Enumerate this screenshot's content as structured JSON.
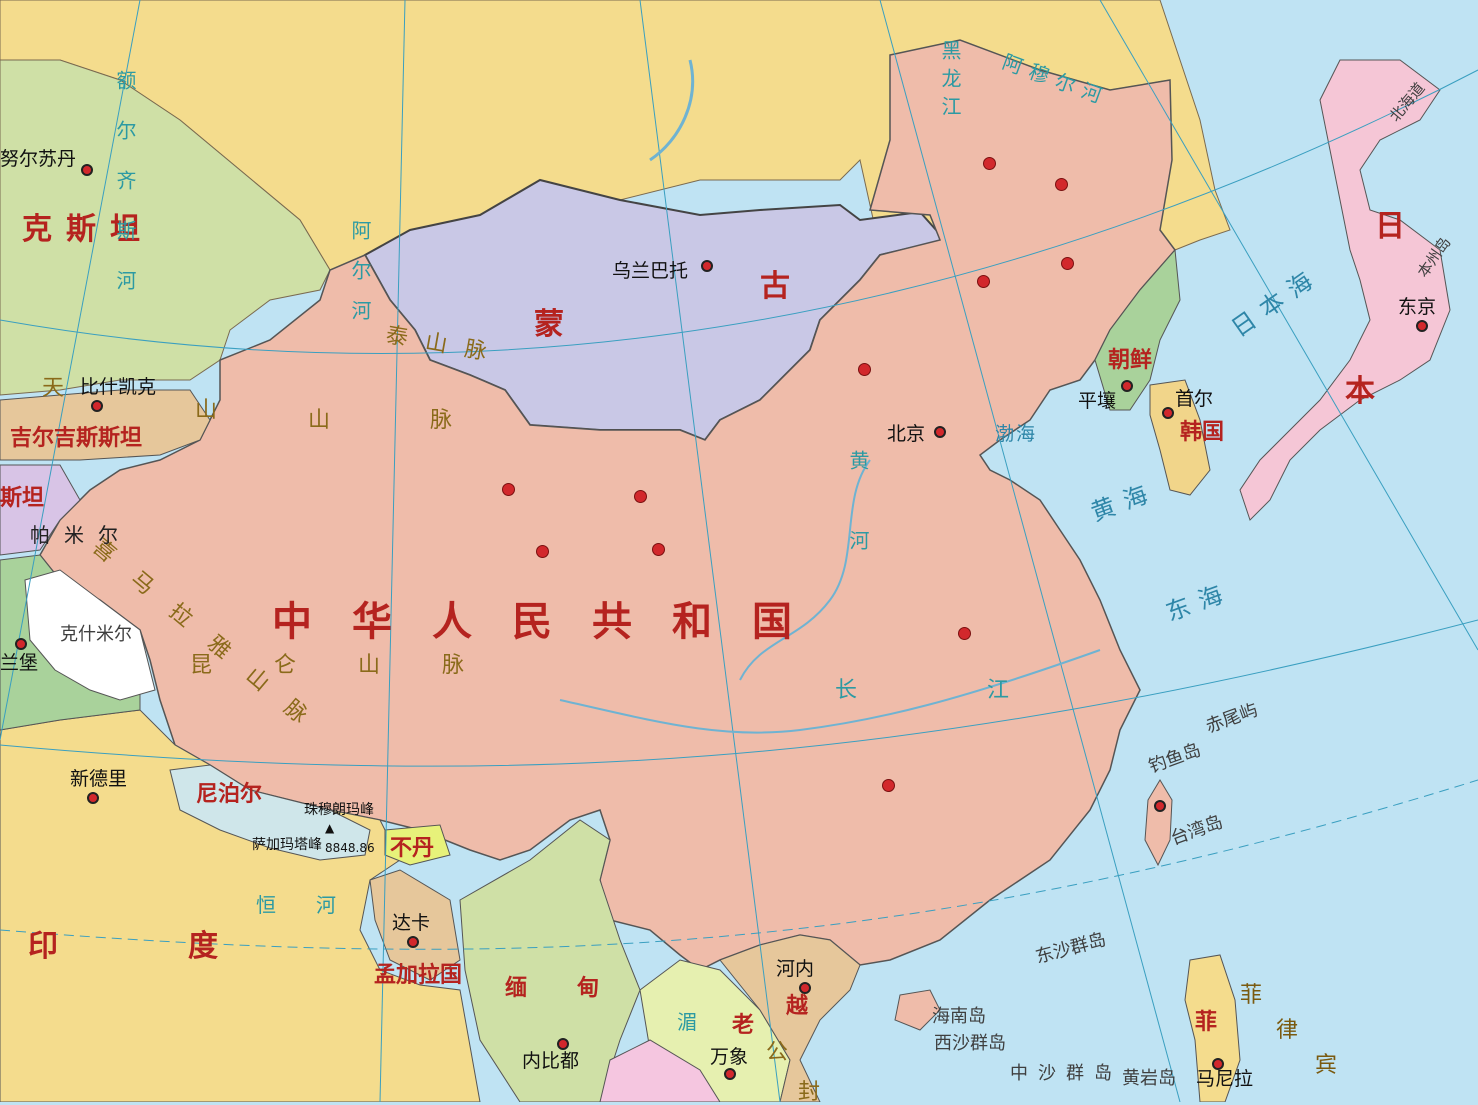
{
  "colors": {
    "sea": "#bfe3f3",
    "china": "#efbcaa",
    "mongolia": "#c9c8e6",
    "russia": "#f4dc8d",
    "kazakhstan": "#cfe0a6",
    "japan": "#f5c6d6",
    "korea_north": "#a9d29b",
    "korea_south": "#f1d58a",
    "dot": "#d2282c"
  },
  "countries": {
    "china": "中华人民共和国",
    "mongolia_1": "蒙",
    "mongolia_2": "古",
    "japan_1": "日",
    "japan_2": "本",
    "north_korea": "朝鲜",
    "south_korea": "韩国",
    "kazakhstan": "克斯坦",
    "kyrgyzstan": "吉尔吉斯斯坦",
    "tajikistan": "斯坦",
    "india": "印度",
    "nepal": "尼泊尔",
    "bhutan": "不丹",
    "bangladesh": "孟加拉国",
    "myanmar": "缅甸",
    "laos": "老",
    "vietnam": "越",
    "philippines": "菲",
    "kashmir": "克什米尔"
  },
  "cities": {
    "ulaanbaatar": "乌兰巴托",
    "beijing": "北京",
    "pyongyang": "平壤",
    "seoul": "首尔",
    "tokyo": "东京",
    "bishkek": "比什凯克",
    "new_delhi": "新德里",
    "dhaka": "达卡",
    "hanoi": "河内",
    "naypyidaw": "内比都",
    "vientiane": "万象",
    "manila": "马尼拉",
    "nursultan": "努尔苏丹",
    "islamabad": "兰堡"
  },
  "seas": {
    "japan_sea": "日本海",
    "yellow_sea": "黄海",
    "east_sea": "东海",
    "bohai": "渤海"
  },
  "rivers": {
    "heilongjiang": "黑龙江",
    "amur": "阿穆尔河",
    "yellow": "黄河",
    "yangtze": "长江",
    "ganges": "恒河",
    "mekong": "湄",
    "irtysh": "额尔齐斯河",
    "altai_river": "阿尔河"
  },
  "mountains": {
    "altai": "泰山脉",
    "tianshan": "山脉",
    "kunlun": "昆仑山脉",
    "himalaya": "喜马拉雅山脉",
    "pamir": "帕米尔",
    "tian": "天",
    "shan": "山"
  },
  "places": {
    "everest": "珠穆朗玛峰",
    "everest_alt": "萨加玛塔峰",
    "everest_height": "8848.86",
    "hokkaido": "北海道",
    "honshu": "本州岛",
    "taiwan": "台湾岛",
    "diaoyu": "钓鱼岛",
    "chiwei": "赤尾屿",
    "dongsha": "东沙群岛",
    "hainan": "海南岛",
    "xisha": "西沙群岛",
    "zhongsha": "中沙群岛",
    "huangyan": "黄岩岛",
    "gong": "公",
    "feng": "封",
    "bin": "宾",
    "lv": "律",
    "fei2": "菲"
  }
}
